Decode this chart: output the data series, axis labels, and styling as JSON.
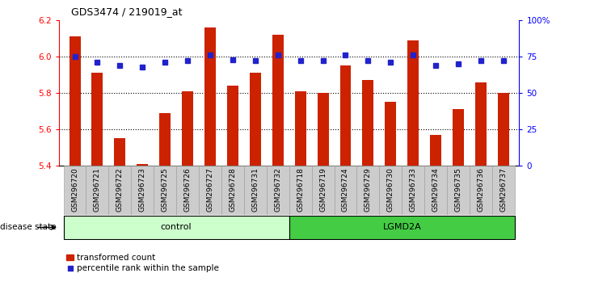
{
  "title": "GDS3474 / 219019_at",
  "samples": [
    "GSM296720",
    "GSM296721",
    "GSM296722",
    "GSM296723",
    "GSM296725",
    "GSM296726",
    "GSM296727",
    "GSM296728",
    "GSM296731",
    "GSM296732",
    "GSM296718",
    "GSM296719",
    "GSM296724",
    "GSM296729",
    "GSM296730",
    "GSM296733",
    "GSM296734",
    "GSM296735",
    "GSM296736",
    "GSM296737"
  ],
  "bar_values": [
    6.11,
    5.91,
    5.55,
    5.41,
    5.69,
    5.81,
    6.16,
    5.84,
    5.91,
    6.12,
    5.81,
    5.8,
    5.95,
    5.87,
    5.75,
    6.09,
    5.57,
    5.71,
    5.86,
    5.8
  ],
  "percentile_values": [
    75,
    71,
    69,
    68,
    71,
    72,
    76,
    73,
    72,
    76,
    72,
    72,
    76,
    72,
    71,
    76,
    69,
    70,
    72,
    72
  ],
  "control_count": 10,
  "lgmd2a_count": 10,
  "ylim_left": [
    5.4,
    6.2
  ],
  "ylim_right": [
    0,
    100
  ],
  "yticks_left": [
    5.4,
    5.6,
    5.8,
    6.0,
    6.2
  ],
  "yticks_right": [
    0,
    25,
    50,
    75,
    100
  ],
  "ytick_labels_right": [
    "0",
    "25",
    "50",
    "75",
    "100%"
  ],
  "bar_color": "#cc2200",
  "dot_color": "#2222cc",
  "control_bg": "#ccffcc",
  "lgmd2a_bg": "#44cc44",
  "tick_label_bg": "#cccccc",
  "legend_bar_label": "transformed count",
  "legend_dot_label": "percentile rank within the sample",
  "disease_state_label": "disease state",
  "control_label": "control",
  "lgmd2a_label": "LGMD2A",
  "bar_width": 0.5
}
